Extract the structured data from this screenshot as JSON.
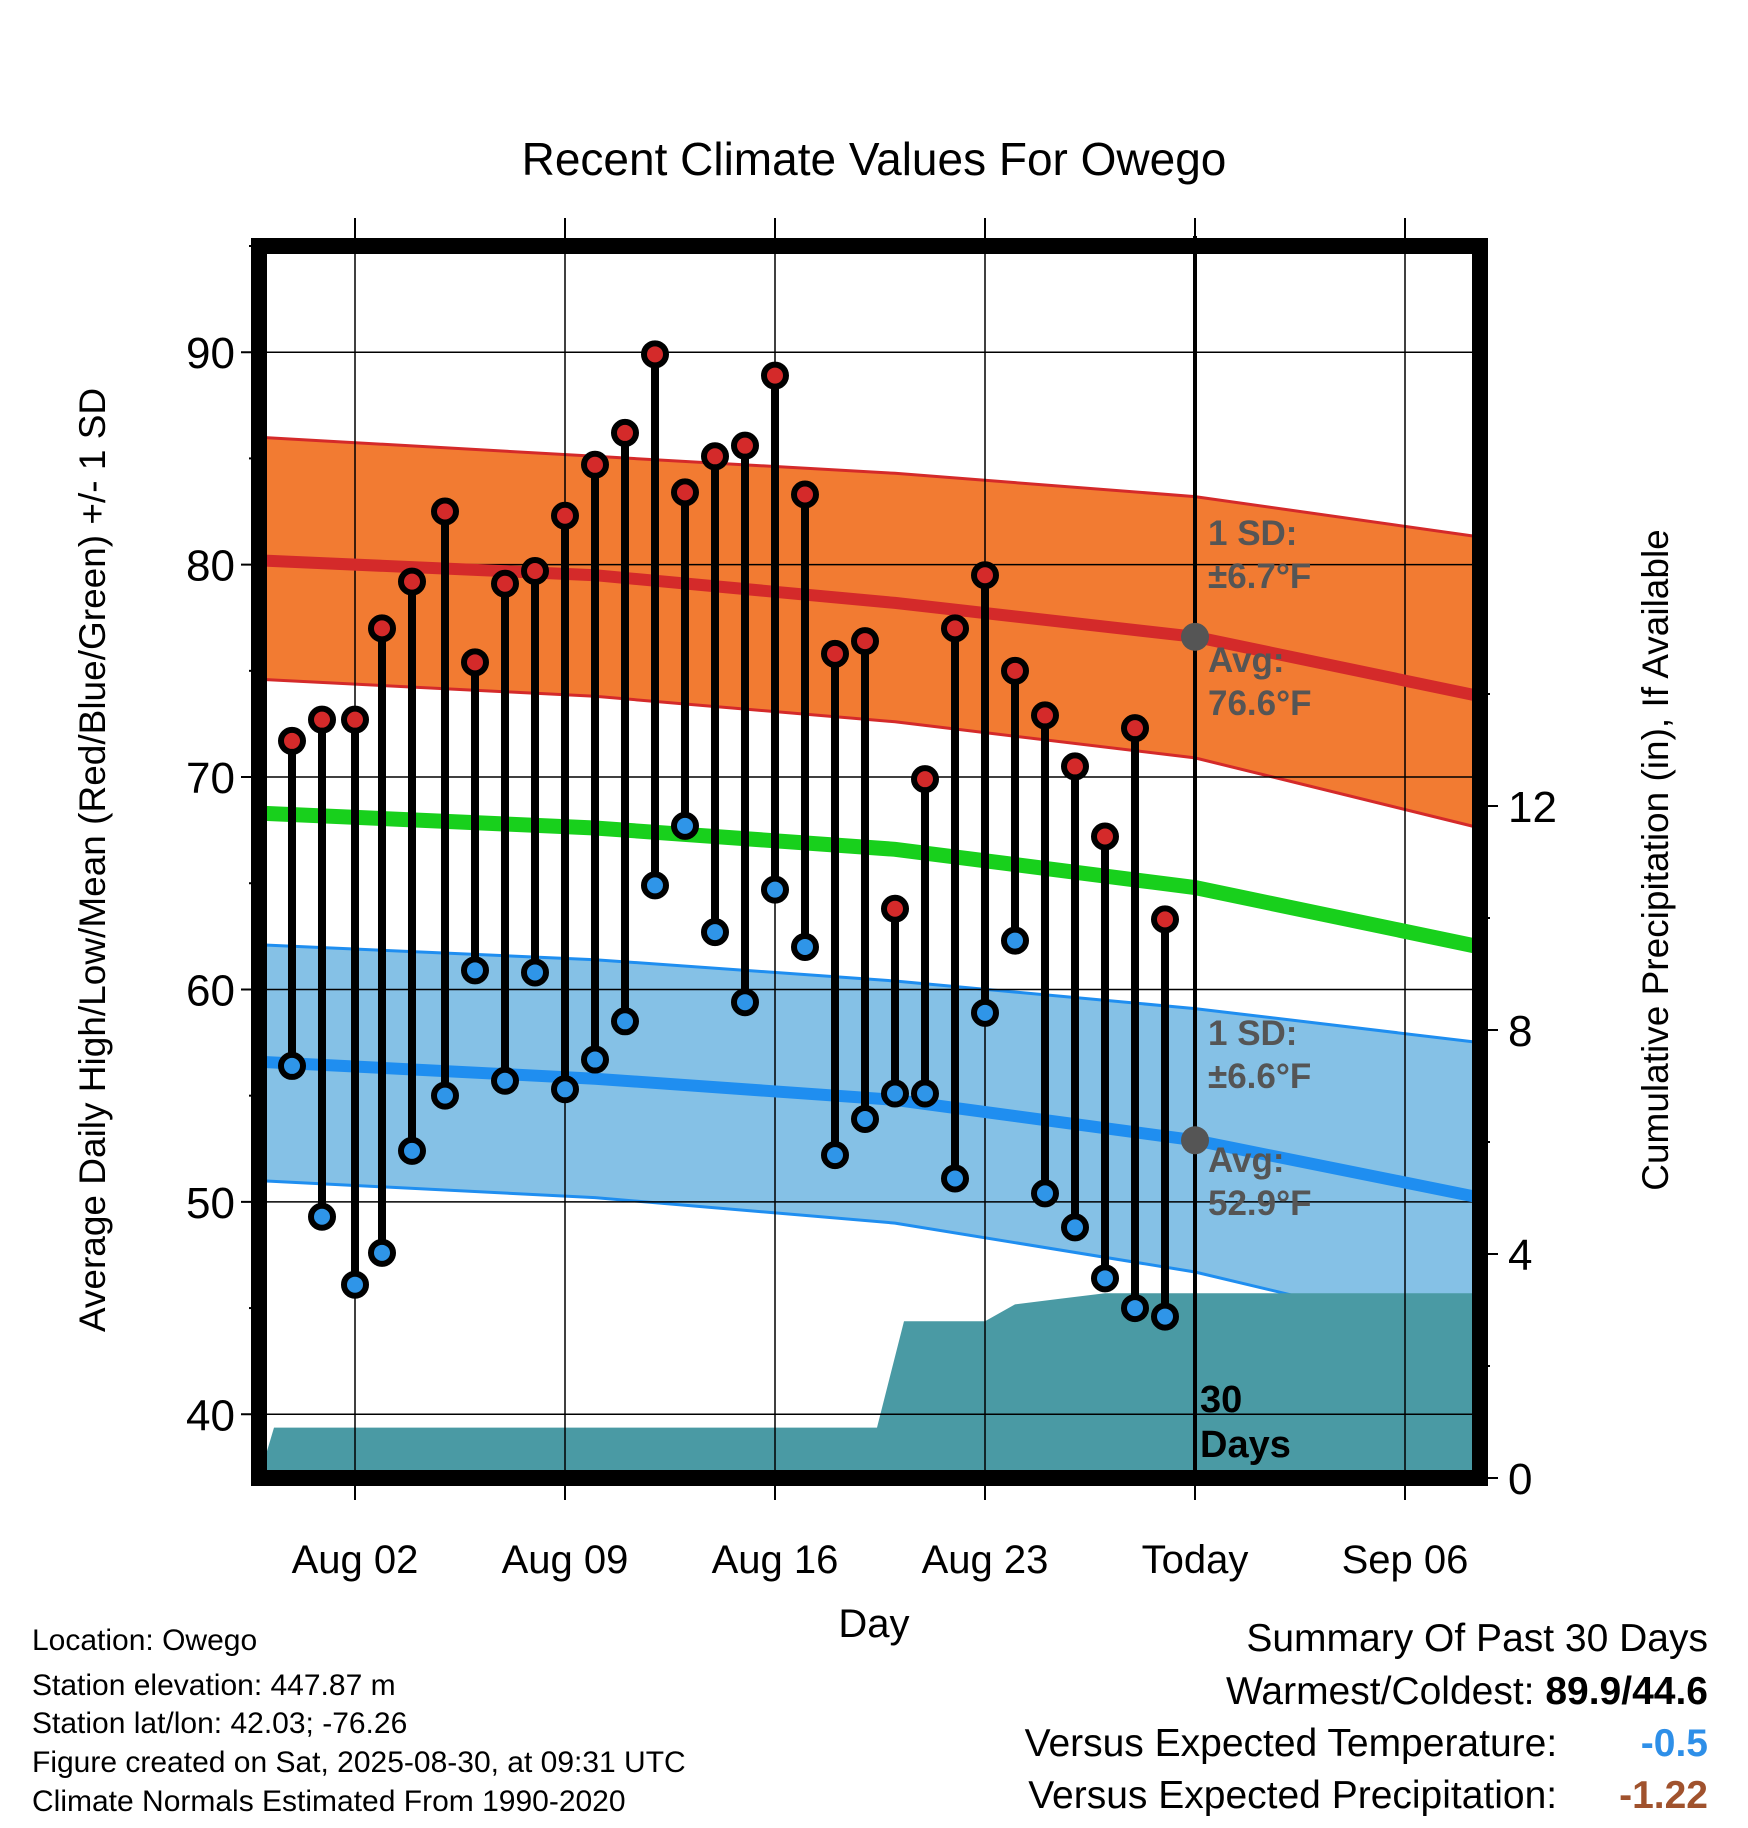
{
  "chart_data": {
    "type": "line",
    "title": "Recent Climate Values For Owego",
    "xlabel": "Day",
    "ylabel_left": "Average Daily High/Low/Mean (Red/Blue/Green) +/- 1 SD",
    "ylabel_right": "Cumulative Precipitation (in), If Available",
    "x_tick_labels": [
      "Aug 02",
      "Aug 09",
      "Aug 16",
      "Aug 23",
      "Today",
      "Sep 06"
    ],
    "x_tick_days": [
      2,
      9,
      16,
      23,
      30,
      37
    ],
    "xlim": [
      -1.2,
      39.5
    ],
    "ylim": [
      37,
      95
    ],
    "y_ticks": [
      40,
      50,
      60,
      70,
      80,
      90
    ],
    "y2lim": [
      0,
      22
    ],
    "y2_ticks": [
      0,
      4,
      8,
      12
    ],
    "grid": true,
    "today_day": 30,
    "days_label": "30",
    "days_word": "Days",
    "observed": {
      "days": [
        -0.1,
        0.9,
        2,
        2.9,
        3.9,
        5,
        6,
        7,
        8,
        9,
        10,
        11,
        12,
        13,
        14,
        15,
        16,
        17,
        18,
        19,
        20,
        21,
        22,
        23,
        24,
        25,
        26,
        27,
        28,
        29
      ],
      "high": [
        71.7,
        72.7,
        72.7,
        77.0,
        79.2,
        82.5,
        75.4,
        79.1,
        79.7,
        82.3,
        84.7,
        86.2,
        89.9,
        83.4,
        85.1,
        85.6,
        88.9,
        83.3,
        75.8,
        76.4,
        63.8,
        69.9,
        77.0,
        79.5,
        75.0,
        72.9,
        70.5,
        67.2,
        72.3,
        63.3
      ],
      "low": [
        56.4,
        49.3,
        46.1,
        47.6,
        52.4,
        55.0,
        60.9,
        55.7,
        60.8,
        55.3,
        56.7,
        58.5,
        64.9,
        67.7,
        62.7,
        59.4,
        64.7,
        62.0,
        52.2,
        53.9,
        55.1,
        55.1,
        51.1,
        58.9,
        62.3,
        50.4,
        48.8,
        46.4,
        45.0,
        44.6
      ]
    },
    "normals": {
      "days": [
        -1.2,
        10,
        20,
        30,
        39.5
      ],
      "high_mean": [
        80.2,
        79.5,
        78.2,
        76.6,
        73.8
      ],
      "high_upper": [
        86.0,
        85.1,
        84.3,
        83.2,
        81.3
      ],
      "high_lower": [
        74.6,
        73.8,
        72.6,
        70.9,
        67.6
      ],
      "avg_mean": [
        68.3,
        67.6,
        66.6,
        64.8,
        62.0
      ],
      "low_mean": [
        56.6,
        55.8,
        54.8,
        52.9,
        50.2
      ],
      "low_upper": [
        62.1,
        61.4,
        60.4,
        59.1,
        57.5
      ],
      "low_lower": [
        51.0,
        50.2,
        49.0,
        46.7,
        43.5
      ]
    },
    "precip": {
      "days": [
        -1.2,
        -0.7,
        19.4,
        20.3,
        23.0,
        24.0,
        25.5,
        27.0,
        28.5,
        30.0,
        39.5
      ],
      "cum": [
        0,
        0.9,
        0.9,
        2.8,
        2.8,
        3.1,
        3.2,
        3.3,
        3.3,
        3.3,
        3.3
      ]
    },
    "annotations": {
      "high_sd_label": "1 SD:",
      "high_sd_value": "±6.7°F",
      "high_avg_label": "Avg:",
      "high_avg_value": "76.6°F",
      "low_sd_label": "1 SD:",
      "low_sd_value": "±6.6°F",
      "low_avg_label": "Avg:",
      "low_avg_value": "52.9°F"
    },
    "colors": {
      "high_band": "#f27b32",
      "high_line": "#d42a2a",
      "low_band": "#85c1e6",
      "low_line": "#1f8ef0",
      "avg_line": "#18d01c",
      "precip": "#4a9aa4",
      "high_dot": "#d42a2a",
      "low_dot": "#2f95e8",
      "annotation": "#555555"
    }
  },
  "info": {
    "location": "Location: Owego",
    "elevation": "Station elevation: 447.87 m",
    "latlon": "Station lat/lon: 42.03; -76.26",
    "created": "Figure created on Sat, 2025-08-30, at 09:31 UTC",
    "normals": "Climate Normals Estimated From 1990-2020"
  },
  "summary": {
    "title": "Summary Of Past 30 Days",
    "warm_label": "Warmest/Coldest:",
    "warm_value": "89.9/44.6",
    "temp_label": "Versus Expected Temperature:",
    "temp_value": "-0.5",
    "temp_color": "#2e8fe8",
    "precip_label": "Versus Expected Precipitation:",
    "precip_value": "-1.22",
    "precip_color": "#a0522d"
  }
}
